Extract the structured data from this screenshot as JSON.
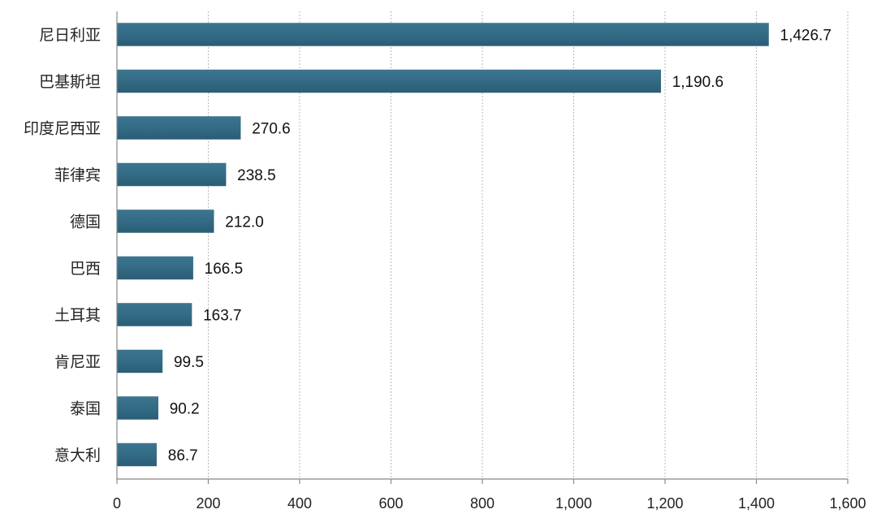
{
  "chart_data": {
    "type": "bar",
    "orientation": "horizontal",
    "categories": [
      "尼日利亚",
      "巴基斯坦",
      "印度尼西亚",
      "菲律宾",
      "德国",
      "巴西",
      "土耳其",
      "肯尼亚",
      "泰国",
      "意大利"
    ],
    "values": [
      1426.7,
      1190.6,
      270.6,
      238.5,
      212.0,
      166.5,
      163.7,
      99.5,
      90.2,
      86.7
    ],
    "value_labels": [
      "1,426.7",
      "1,190.6",
      "270.6",
      "238.5",
      "212.0",
      "166.5",
      "163.7",
      "99.5",
      "90.2",
      "86.7"
    ],
    "xlim": [
      0,
      1600
    ],
    "xticks": [
      0,
      200,
      400,
      600,
      800,
      1000,
      1200,
      1400,
      1600
    ],
    "xtick_labels": [
      "0",
      "200",
      "400",
      "600",
      "800",
      "1,000",
      "1,200",
      "1,400",
      "1,600"
    ],
    "grid": "vertical",
    "bar_color": "#336b85",
    "title": "",
    "xlabel": "",
    "ylabel": ""
  }
}
